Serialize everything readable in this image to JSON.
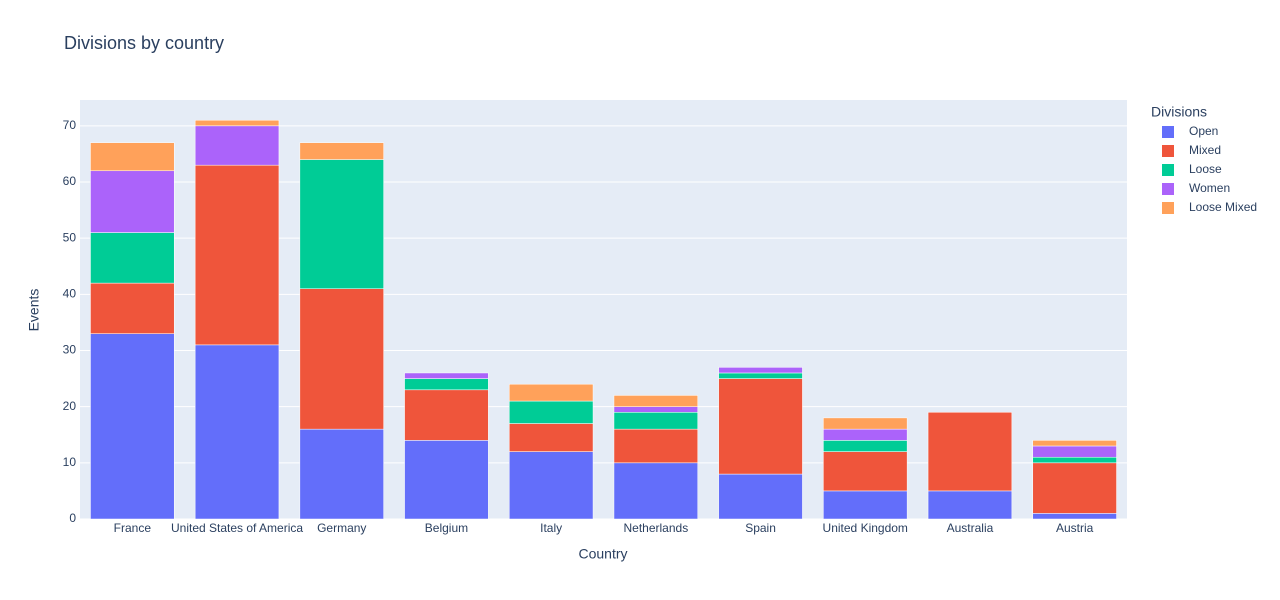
{
  "chart_data": {
    "type": "stacked_bar",
    "title": "Divisions by country",
    "x_label": "Country",
    "y_label": "Events",
    "legend_title": "Divisions",
    "categories": [
      "France",
      "United States of America",
      "Germany",
      "Belgium",
      "Italy",
      "Netherlands",
      "Spain",
      "United Kingdom",
      "Australia",
      "Austria"
    ],
    "series": [
      {
        "name": "Open",
        "color": "#636efa",
        "values": [
          33,
          31,
          16,
          14,
          12,
          10,
          8,
          5,
          5,
          1
        ]
      },
      {
        "name": "Mixed",
        "color": "#ef553b",
        "values": [
          9,
          32,
          25,
          9,
          5,
          6,
          17,
          7,
          14,
          9
        ]
      },
      {
        "name": "Loose",
        "color": "#00cc96",
        "values": [
          9,
          0,
          23,
          2,
          4,
          3,
          1,
          2,
          0,
          1
        ]
      },
      {
        "name": "Women",
        "color": "#ab63fa",
        "values": [
          11,
          7,
          0,
          1,
          0,
          1,
          1,
          2,
          0,
          2
        ]
      },
      {
        "name": "Loose Mixed",
        "color": "#ffa15a",
        "values": [
          5,
          1,
          3,
          0,
          3,
          2,
          0,
          2,
          0,
          1
        ]
      }
    ],
    "ylim": [
      0,
      74.6
    ],
    "yticks": [
      0,
      10,
      20,
      30,
      40,
      50,
      60,
      70
    ],
    "grid": true,
    "legend": "right"
  }
}
